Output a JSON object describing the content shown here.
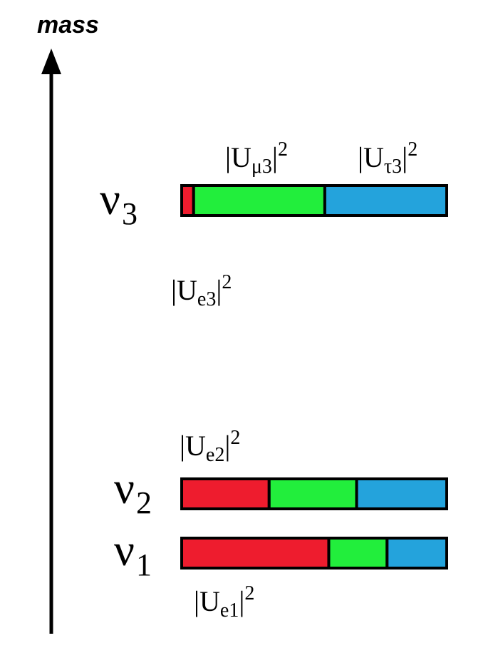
{
  "axis": {
    "title": "mass"
  },
  "colors": {
    "electron": "#ee1c2e",
    "muon": "#22ee3c",
    "tau": "#24a3dc",
    "outline": "#000000"
  },
  "states": [
    {
      "id": "nu3",
      "symbol": "ν",
      "index": "3",
      "fractions": {
        "e": 0.045,
        "mu": 0.495,
        "tau": 0.46
      },
      "labels": [
        {
          "key": "mu",
          "bar": "|U",
          "sub": "μ3",
          "tail": "|",
          "sup": "2"
        },
        {
          "key": "tau",
          "bar": "|U",
          "sub": "τ3",
          "tail": "|",
          "sup": "2"
        },
        {
          "key": "e",
          "bar": "|U",
          "sub": "e3",
          "tail": "|",
          "sup": "2"
        }
      ]
    },
    {
      "id": "nu2",
      "symbol": "ν",
      "index": "2",
      "fractions": {
        "e": 0.33,
        "mu": 0.33,
        "tau": 0.34
      },
      "labels": [
        {
          "key": "e",
          "bar": "|U",
          "sub": "e2",
          "tail": "|",
          "sup": "2"
        }
      ]
    },
    {
      "id": "nu1",
      "symbol": "ν",
      "index": "1",
      "fractions": {
        "e": 0.555,
        "mu": 0.22,
        "tau": 0.225
      },
      "labels": [
        {
          "key": "e",
          "bar": "|U",
          "sub": "e1",
          "tail": "|",
          "sup": "2"
        }
      ]
    }
  ]
}
